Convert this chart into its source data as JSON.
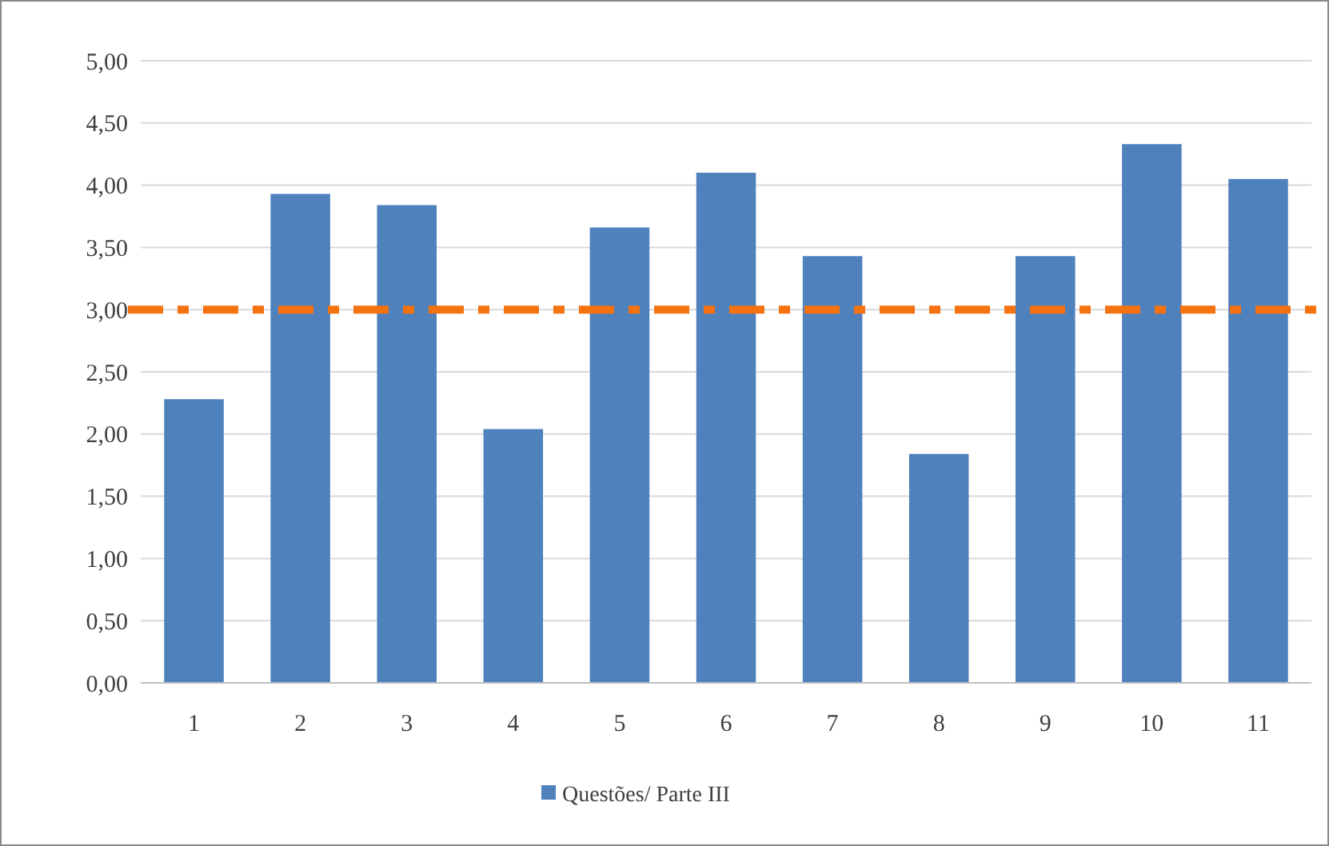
{
  "chart_data": {
    "type": "bar",
    "categories": [
      "1",
      "2",
      "3",
      "4",
      "5",
      "6",
      "7",
      "8",
      "9",
      "10",
      "11"
    ],
    "series": [
      {
        "name": "Questões/ Parte III",
        "color": "#4f81bd",
        "values": [
          2.28,
          3.93,
          3.84,
          2.04,
          3.66,
          4.1,
          3.43,
          1.84,
          3.43,
          4.33,
          4.05
        ]
      }
    ],
    "ylim": [
      0,
      5
    ],
    "yticks": [
      {
        "value": 0,
        "label": "0,00"
      },
      {
        "value": 0.5,
        "label": "0,50"
      },
      {
        "value": 1,
        "label": "1,00"
      },
      {
        "value": 1.5,
        "label": "1,50"
      },
      {
        "value": 2,
        "label": "2,00"
      },
      {
        "value": 2.5,
        "label": "2,50"
      },
      {
        "value": 3,
        "label": "3,00"
      },
      {
        "value": 3.5,
        "label": "3,50"
      },
      {
        "value": 4,
        "label": "4,00"
      },
      {
        "value": 4.5,
        "label": "4,50"
      },
      {
        "value": 5,
        "label": "5,00"
      }
    ],
    "ref_lines": [
      {
        "axis": "y",
        "value": 3,
        "color": "#f4720f",
        "line_style": "dashed"
      }
    ],
    "grid": "y",
    "legend": "bottom"
  }
}
